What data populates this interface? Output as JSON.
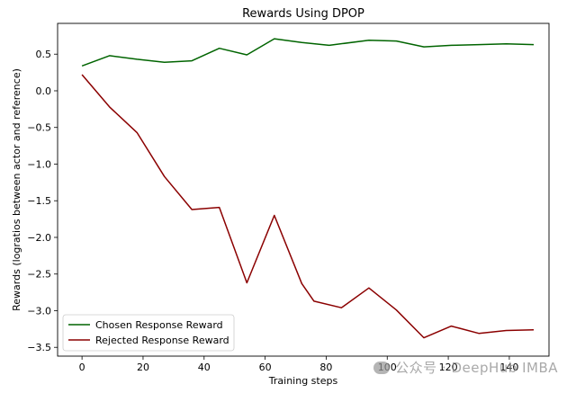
{
  "chart_data": {
    "type": "line",
    "title": "Rewards Using DPOP",
    "xlabel": "Training steps",
    "ylabel": "Rewards (logratios between actor and reference)",
    "xlim": [
      -8,
      153
    ],
    "ylim": [
      -3.62,
      0.92
    ],
    "xticks": [
      0,
      20,
      40,
      60,
      80,
      100,
      120,
      140
    ],
    "yticks": [
      0.5,
      0.0,
      -0.5,
      -1.0,
      -1.5,
      -2.0,
      -2.5,
      -3.0,
      -3.5
    ],
    "ytick_labels": [
      "0.5",
      "0.0",
      "−0.5",
      "−1.0",
      "−1.5",
      "−2.0",
      "−2.5",
      "−3.0",
      "−3.5"
    ],
    "x": [
      0,
      9,
      18,
      27,
      36,
      45,
      54,
      63,
      72,
      81,
      90,
      99,
      108,
      117,
      126,
      135,
      144
    ],
    "x_actual": [
      0,
      9,
      18,
      27,
      36,
      45,
      54,
      63,
      72,
      76,
      85,
      94,
      103,
      112,
      121,
      130,
      148
    ],
    "grid": false,
    "legend_position": "lower-left",
    "series": [
      {
        "name": "Chosen Response Reward",
        "color": "#006400",
        "x": [
          0,
          9,
          18,
          27,
          36,
          45,
          54,
          63,
          72,
          81,
          94,
          103,
          112,
          121,
          130,
          139,
          148
        ],
        "values": [
          0.34,
          0.48,
          0.43,
          0.39,
          0.41,
          0.58,
          0.49,
          0.71,
          0.66,
          0.62,
          0.69,
          0.68,
          0.6,
          0.62,
          0.63,
          0.64,
          0.63
        ]
      },
      {
        "name": "Rejected Response Reward",
        "color": "#8b0000",
        "x": [
          0,
          9,
          18,
          27,
          36,
          45,
          54,
          63,
          72,
          76,
          85,
          94,
          103,
          112,
          121,
          130,
          139,
          148
        ],
        "values": [
          0.22,
          -0.22,
          -0.57,
          -1.17,
          -1.62,
          -1.59,
          -2.62,
          -1.7,
          -2.63,
          -2.87,
          -2.96,
          -2.69,
          -2.99,
          -3.37,
          -3.21,
          -3.31,
          -3.27,
          -3.26
        ]
      }
    ]
  },
  "watermark": {
    "text": "公众号 · DeepHub IMBA"
  }
}
